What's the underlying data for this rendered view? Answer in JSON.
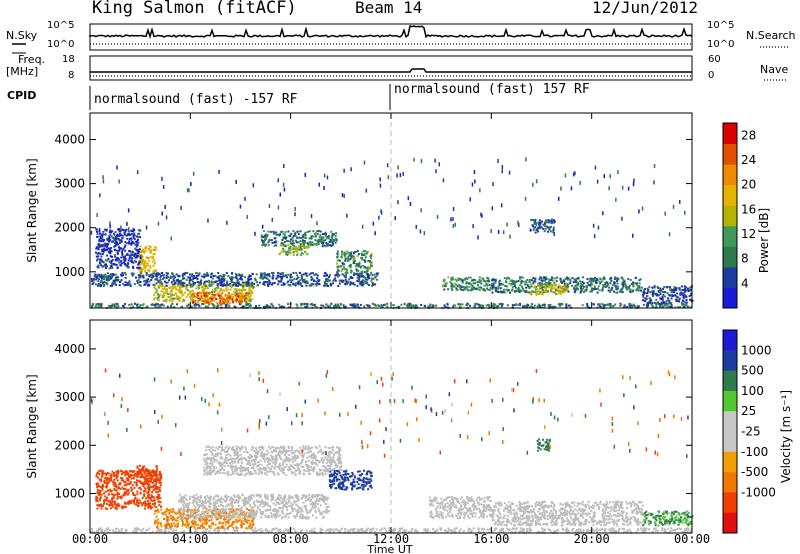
{
  "header": {
    "station": "King Salmon (fitACF)",
    "beam": "Beam 14",
    "date": "12/Jun/2012"
  },
  "top_panels": {
    "nsky_label": "N.Sky",
    "nsky_ticks": [
      "10^5",
      "10^0"
    ],
    "nsearch_label": "N.Search",
    "nsearch_ticks": [
      "10^5",
      "10^0"
    ],
    "freq_label": "Freq.",
    "freq_unit": "[MHz]",
    "freq_ticks": [
      "18",
      "8"
    ],
    "nave_label": "Nave",
    "nave_ticks": [
      "60",
      "0"
    ],
    "cpid_label": "CPID",
    "cpid_segments": [
      "normalsound (fast) -157 RF",
      "normalsound (fast) 157 RF"
    ]
  },
  "colors": {
    "power": [
      "#1a1ad8",
      "#1e3ca0",
      "#2f7a4f",
      "#3f9a5a",
      "#b4b400",
      "#e6b400",
      "#f08a00",
      "#e05000",
      "#d80000"
    ],
    "velocity": [
      "#1a1ad8",
      "#1e3ca0",
      "#2f7a4f",
      "#50c830",
      "#c8c8c8",
      "#c8c8c8",
      "#f0a000",
      "#f07800",
      "#f04000",
      "#e01010"
    ],
    "ground_scatter": "#bdbdbd"
  },
  "chart_data": [
    {
      "type": "heatmap",
      "title": "",
      "xlabel": "",
      "ylabel": "Slant Range [km]",
      "x_ticks": [
        "00:00",
        "04:00",
        "08:00",
        "12:00",
        "16:00",
        "20:00",
        "00:00"
      ],
      "xlim_hours": [
        0,
        24
      ],
      "y_ticks": [
        1000,
        2000,
        3000,
        4000
      ],
      "ylim_km": [
        180,
        4600
      ],
      "colorbar_label": "Power [dB]",
      "colorbar_ticks": [
        4,
        8,
        12,
        16,
        20,
        24,
        28
      ],
      "colorbar_range": [
        0,
        30
      ],
      "regions": [
        {
          "t": [
            0.0,
            24.0
          ],
          "r": [
            200,
            300
          ],
          "level": 8
        },
        {
          "t": [
            2.5,
            6.5
          ],
          "r": [
            350,
            750
          ],
          "level": 16
        },
        {
          "t": [
            4.0,
            6.2
          ],
          "r": [
            300,
            550
          ],
          "level": 24
        },
        {
          "t": [
            1.9,
            2.6
          ],
          "r": [
            1000,
            1600
          ],
          "level": 18
        },
        {
          "t": [
            0.0,
            11.5
          ],
          "r": [
            700,
            1000
          ],
          "level": 6
        },
        {
          "t": [
            0.2,
            2.0
          ],
          "r": [
            1100,
            2000
          ],
          "level": 4
        },
        {
          "t": [
            6.8,
            9.8
          ],
          "r": [
            1600,
            1950
          ],
          "level": 8
        },
        {
          "t": [
            7.5,
            8.7
          ],
          "r": [
            1400,
            1650
          ],
          "level": 13
        },
        {
          "t": [
            9.8,
            11.2
          ],
          "r": [
            1000,
            1500
          ],
          "level": 10
        },
        {
          "t": [
            14.0,
            16.0
          ],
          "r": [
            600,
            900
          ],
          "level": 10
        },
        {
          "t": [
            16.0,
            22.0
          ],
          "r": [
            550,
            900
          ],
          "level": 8
        },
        {
          "t": [
            17.5,
            19.0
          ],
          "r": [
            500,
            750
          ],
          "level": 16
        },
        {
          "t": [
            22.0,
            24.0
          ],
          "r": [
            300,
            700
          ],
          "level": 5
        },
        {
          "t": [
            17.5,
            18.5
          ],
          "r": [
            1900,
            2200
          ],
          "level": 6
        }
      ]
    },
    {
      "type": "heatmap",
      "title": "",
      "xlabel": "Time UT",
      "ylabel": "Slant Range [km]",
      "x_ticks": [
        "00:00",
        "04:00",
        "08:00",
        "12:00",
        "16:00",
        "20:00",
        "00:00"
      ],
      "xlim_hours": [
        0,
        24
      ],
      "y_ticks": [
        1000,
        2000,
        3000,
        4000
      ],
      "ylim_km": [
        180,
        4600
      ],
      "colorbar_label": "Velocity [m s^-1]",
      "colorbar_ticks": [
        1000,
        500,
        100,
        25,
        -25,
        -100,
        -500,
        -1000
      ],
      "colorbar_range": [
        -1000,
        1000
      ],
      "regions": [
        {
          "t": [
            0.0,
            24.0
          ],
          "r": [
            200,
            300
          ],
          "v": 0,
          "ground": true
        },
        {
          "t": [
            0.2,
            2.8
          ],
          "r": [
            700,
            1500
          ],
          "v": -600
        },
        {
          "t": [
            1.8,
            2.8
          ],
          "r": [
            1200,
            1600
          ],
          "v": -900
        },
        {
          "t": [
            2.5,
            6.5
          ],
          "r": [
            300,
            700
          ],
          "v": -150
        },
        {
          "t": [
            3.5,
            9.5
          ],
          "r": [
            500,
            1000
          ],
          "v": 0,
          "ground": true
        },
        {
          "t": [
            4.5,
            10.0
          ],
          "r": [
            1400,
            2000
          ],
          "v": 0,
          "ground": true
        },
        {
          "t": [
            9.5,
            11.2
          ],
          "r": [
            1100,
            1500
          ],
          "v": 700
        },
        {
          "t": [
            13.5,
            16.0
          ],
          "r": [
            500,
            950
          ],
          "v": 0,
          "ground": true
        },
        {
          "t": [
            16.0,
            22.0
          ],
          "r": [
            350,
            850
          ],
          "v": 0,
          "ground": true
        },
        {
          "t": [
            22.0,
            24.0
          ],
          "r": [
            350,
            650
          ],
          "v": 120
        },
        {
          "t": [
            17.8,
            18.3
          ],
          "r": [
            1900,
            2150
          ],
          "v": 200
        }
      ]
    }
  ]
}
